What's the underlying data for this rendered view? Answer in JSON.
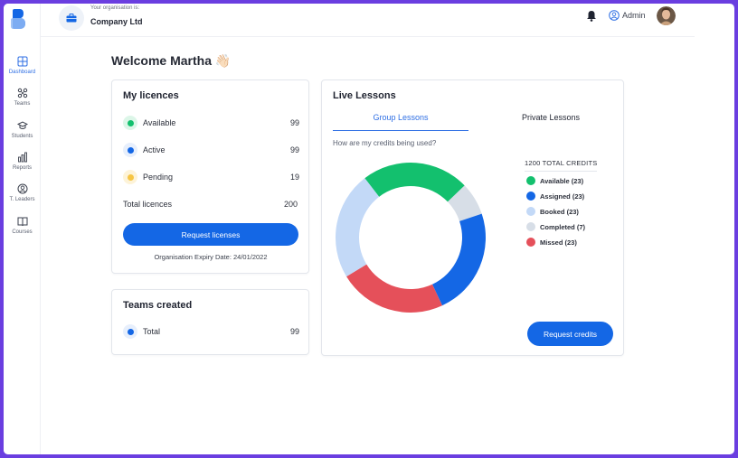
{
  "colors": {
    "accent": "#1467e5",
    "available": "#13c06e",
    "assigned": "#1467e5",
    "booked": "#c3d9f7",
    "completed": "#d7dee7",
    "missed": "#e5505a",
    "pending": "#f6c544"
  },
  "sidebar": {
    "items": [
      {
        "label": "Dashboard",
        "icon": "grid-icon"
      },
      {
        "label": "Teams",
        "icon": "teams-icon"
      },
      {
        "label": "Students",
        "icon": "graduation-cap-icon"
      },
      {
        "label": "Reports",
        "icon": "bar-chart-icon"
      },
      {
        "label": "T. Leaders",
        "icon": "user-circle-icon"
      },
      {
        "label": "Courses",
        "icon": "book-icon"
      }
    ]
  },
  "header": {
    "org_caption": "Your organisation is:",
    "org_name": "Company Ltd",
    "user_label": "Admin"
  },
  "welcome": {
    "text": "Welcome Martha 👋🏻"
  },
  "licences": {
    "title": "My licences",
    "rows": [
      {
        "label": "Available",
        "value": "99"
      },
      {
        "label": "Active",
        "value": "99"
      },
      {
        "label": "Pending",
        "value": "19"
      }
    ],
    "total_label": "Total licences",
    "total_value": "200",
    "button_label": "Request licenses",
    "expiry_text": "Organisation Expiry Date:  24/01/2022"
  },
  "teams": {
    "title": "Teams created",
    "row_label": "Total",
    "row_value": "99"
  },
  "live": {
    "title": "Live Lessons",
    "tabs": [
      "Group Lessons",
      "Private Lessons"
    ],
    "question": "How are my credits being used?",
    "total_credits": "1200 TOTAL CREDITS",
    "button_label": "Request credits"
  },
  "chart_data": {
    "type": "pie",
    "categories": [
      "Available",
      "Assigned",
      "Booked",
      "Completed",
      "Missed"
    ],
    "values": [
      23,
      23,
      23,
      7,
      23
    ],
    "legend": [
      "Available (23)",
      "Assigned (23)",
      "Booked (23)",
      "Completed (7)",
      "Missed (23)"
    ],
    "legend_position": "right",
    "colors": [
      "#13c06e",
      "#1467e5",
      "#c3d9f7",
      "#d7dee7",
      "#e5505a"
    ]
  }
}
